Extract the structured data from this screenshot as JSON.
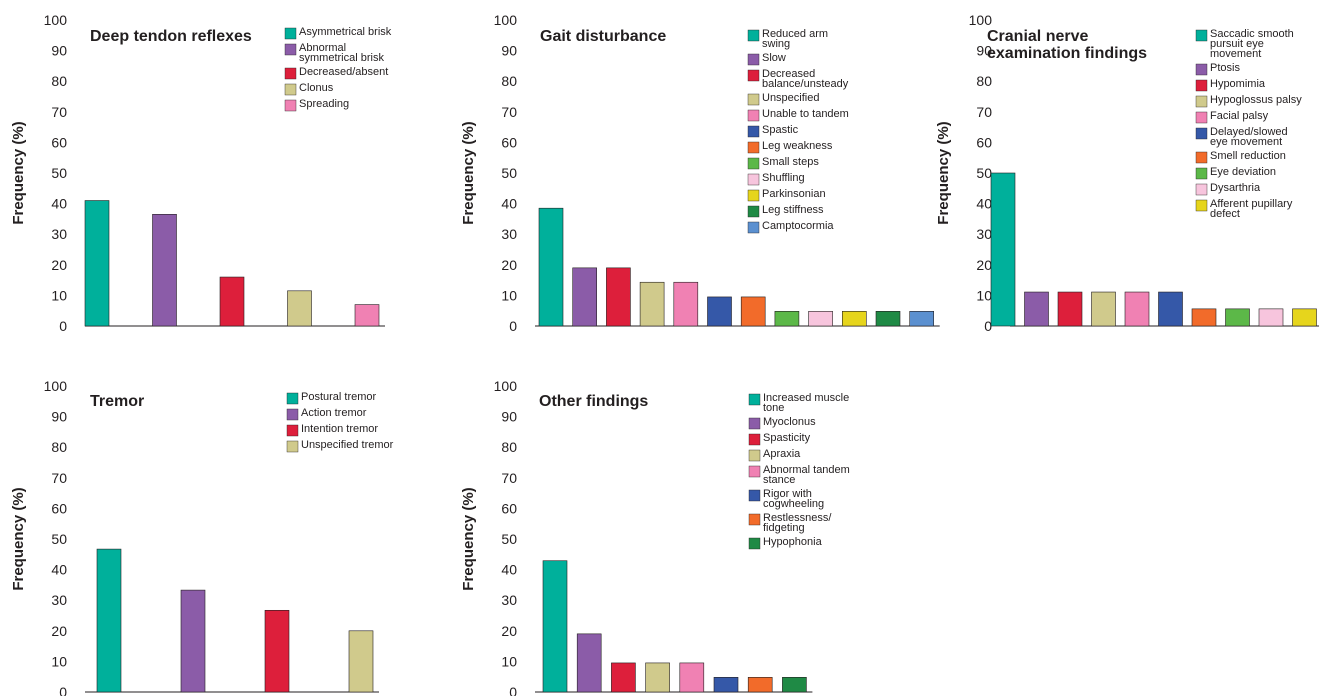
{
  "ylabel": "Frequency (%)",
  "colors": {
    "teal": "#00b09b",
    "purple": "#8b5ca8",
    "red": "#dd1f3b",
    "khaki": "#d0ca8c",
    "pink": "#f081b3",
    "blue": "#3558a8",
    "orange": "#f26b2a",
    "green": "#5cb848",
    "lightpink": "#f7c5dd",
    "yellow": "#e6d51c",
    "darkgreen": "#1f8a45",
    "skyblue": "#5b90d0"
  },
  "chart_data": [
    {
      "type": "bar",
      "title": [
        "Deep tendon reflexes"
      ],
      "ylabel": "Frequency (%)",
      "ylim": [
        0,
        100
      ],
      "yticks": [
        0,
        10,
        20,
        30,
        40,
        50,
        60,
        70,
        80,
        90,
        100
      ],
      "categories": [
        [
          "Asymmetrical brisk"
        ],
        [
          "Abnormal",
          "symmetrical brisk"
        ],
        [
          "Decreased/absent"
        ],
        [
          "Clonus"
        ],
        [
          "Spreading"
        ]
      ],
      "values": [
        41,
        36.5,
        16,
        11.5,
        7
      ],
      "colors": [
        "#00b09b",
        "#8b5ca8",
        "#dd1f3b",
        "#d0ca8c",
        "#f081b3"
      ],
      "grid": false,
      "legend": "top-right"
    },
    {
      "type": "bar",
      "title": [
        "Gait disturbance"
      ],
      "ylabel": "Frequency (%)",
      "ylim": [
        0,
        100
      ],
      "yticks": [
        0,
        10,
        20,
        30,
        40,
        50,
        60,
        70,
        80,
        90,
        100
      ],
      "categories": [
        [
          "Reduced arm",
          "swing"
        ],
        [
          "Slow"
        ],
        [
          "Decreased",
          "balance/unsteady"
        ],
        [
          "Unspecified"
        ],
        [
          "Unable to tandem"
        ],
        [
          "Spastic"
        ],
        [
          "Leg weakness"
        ],
        [
          "Small steps"
        ],
        [
          "Shuffling"
        ],
        [
          "Parkinsonian"
        ],
        [
          "Leg stiffness"
        ],
        [
          "Camptocormia"
        ]
      ],
      "values": [
        38.5,
        19,
        19,
        14.3,
        14.3,
        9.5,
        9.5,
        4.8,
        4.8,
        4.8,
        4.8,
        4.8
      ],
      "colors": [
        "#00b09b",
        "#8b5ca8",
        "#dd1f3b",
        "#d0ca8c",
        "#f081b3",
        "#3558a8",
        "#f26b2a",
        "#5cb848",
        "#f7c5dd",
        "#e6d51c",
        "#1f8a45",
        "#5b90d0"
      ],
      "grid": false,
      "legend": "top-right"
    },
    {
      "type": "bar",
      "title": [
        "Cranial nerve",
        "examination findings"
      ],
      "ylabel": "Frequency (%)",
      "ylim": [
        0,
        100
      ],
      "yticks": [
        0,
        10,
        20,
        30,
        40,
        50,
        60,
        70,
        80,
        90,
        100
      ],
      "categories": [
        [
          "Saccadic smooth",
          "pursuit eye",
          "movement"
        ],
        [
          "Ptosis"
        ],
        [
          "Hypomimia"
        ],
        [
          "Hypoglossus palsy"
        ],
        [
          "Facial palsy"
        ],
        [
          "Delayed/slowed",
          "eye movement"
        ],
        [
          "Smell reduction"
        ],
        [
          "Eye deviation"
        ],
        [
          "Dysarthria"
        ],
        [
          "Afferent pupillary",
          "defect"
        ]
      ],
      "values": [
        50,
        11.1,
        11.1,
        11.1,
        11.1,
        11.1,
        5.6,
        5.6,
        5.6,
        5.6
      ],
      "colors": [
        "#00b09b",
        "#8b5ca8",
        "#dd1f3b",
        "#d0ca8c",
        "#f081b3",
        "#3558a8",
        "#f26b2a",
        "#5cb848",
        "#f7c5dd",
        "#e6d51c"
      ],
      "grid": false,
      "legend": "top-right"
    },
    {
      "type": "bar",
      "title": [
        "Tremor"
      ],
      "ylabel": "Frequency (%)",
      "ylim": [
        0,
        100
      ],
      "yticks": [
        0,
        10,
        20,
        30,
        40,
        50,
        60,
        70,
        80,
        90,
        100
      ],
      "categories": [
        [
          "Postural tremor"
        ],
        [
          "Action tremor"
        ],
        [
          "Intention tremor"
        ],
        [
          "Unspecified tremor"
        ]
      ],
      "values": [
        46.7,
        33.3,
        26.7,
        20
      ],
      "colors": [
        "#00b09b",
        "#8b5ca8",
        "#dd1f3b",
        "#d0ca8c"
      ],
      "grid": false,
      "legend": "top-right"
    },
    {
      "type": "bar",
      "title": [
        "Other findings"
      ],
      "ylabel": "Frequency (%)",
      "ylim": [
        0,
        100
      ],
      "yticks": [
        0,
        10,
        20,
        30,
        40,
        50,
        60,
        70,
        80,
        90,
        100
      ],
      "categories": [
        [
          "Increased muscle",
          "tone"
        ],
        [
          "Myoclonus"
        ],
        [
          "Spasticity"
        ],
        [
          "Apraxia"
        ],
        [
          "Abnormal tandem",
          "stance"
        ],
        [
          "Rigor with",
          "cogwheeling"
        ],
        [
          "Restlessness/",
          "fidgeting"
        ],
        [
          "Hypophonia"
        ]
      ],
      "values": [
        42.9,
        19,
        9.5,
        9.5,
        9.5,
        4.8,
        4.8,
        4.8
      ],
      "colors": [
        "#00b09b",
        "#8b5ca8",
        "#dd1f3b",
        "#d0ca8c",
        "#f081b3",
        "#3558a8",
        "#f26b2a",
        "#1f8a45"
      ],
      "grid": false,
      "legend": "top-right"
    }
  ]
}
